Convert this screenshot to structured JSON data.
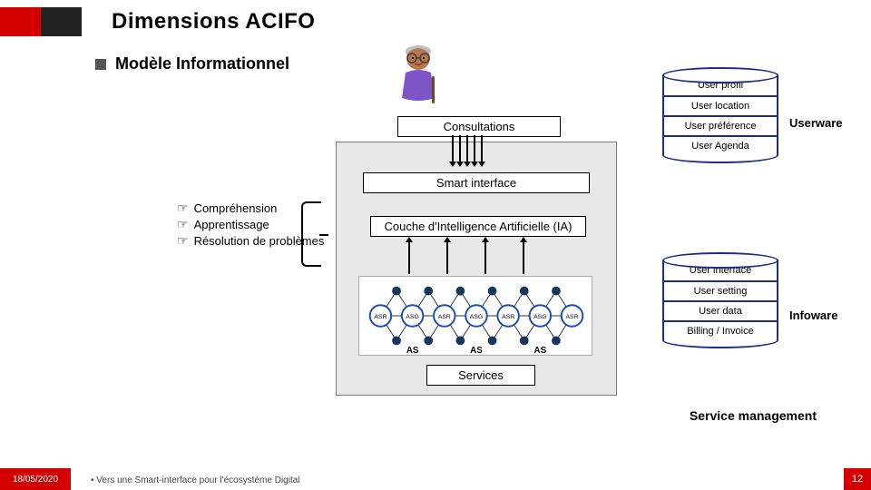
{
  "colors": {
    "accent_red": "#d40000",
    "black": "#000000",
    "grey_panel": "#e8e8e8",
    "stroke_blue": "#1b2f8a"
  },
  "header": {
    "title": "Dimensions ACIFO",
    "subtitle": "Modèle Informationnel"
  },
  "boxes": {
    "consultations": "Consultations",
    "smart_interface": "Smart interface",
    "ia_layer": "Couche d'Intelligence Artificielle (IA)",
    "services": "Services"
  },
  "capabilities": {
    "items": [
      "Compréhension",
      "Apprentissage",
      "Résolution de problèmes"
    ],
    "bullet_glyph": "☞"
  },
  "cylinders": {
    "userware": {
      "label": "Userware",
      "bands": [
        "User profil",
        "User location",
        "User préférence",
        "User Agenda"
      ]
    },
    "infoware": {
      "label": "Infoware",
      "bands": [
        "User interface",
        "User setting",
        "User data",
        "Billing / Invoice"
      ]
    }
  },
  "network": {
    "big_nodes": [
      "ASR",
      "ASG",
      "ASR",
      "ASG",
      "ASR",
      "ASG",
      "ASR"
    ],
    "group_label": "AS",
    "node_stroke": "#1b4fb8",
    "small_fill": "#17365d"
  },
  "service_mgmt": "Service management",
  "footer": {
    "date": "18/05/2020",
    "text": "•  Vers une Smart-interface pour l'écosystème Digital",
    "page": "12"
  }
}
